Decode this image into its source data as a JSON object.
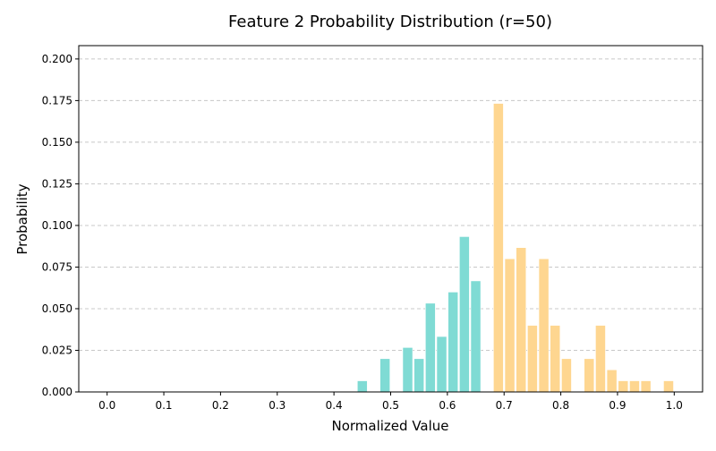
{
  "chart_data": {
    "type": "bar",
    "title": "Feature 2 Probability Distribution (r=50)",
    "xlabel": "Normalized Value",
    "ylabel": "Probability",
    "xlim": [
      -0.05,
      1.05
    ],
    "ylim": [
      0,
      0.208
    ],
    "xticks": [
      "0.0",
      "0.1",
      "0.2",
      "0.3",
      "0.4",
      "0.5",
      "0.6",
      "0.7",
      "0.8",
      "0.9",
      "1.0"
    ],
    "yticks": [
      "0.000",
      "0.025",
      "0.050",
      "0.075",
      "0.100",
      "0.125",
      "0.150",
      "0.175",
      "0.200"
    ],
    "grid": "horizontal dashed",
    "colors": {
      "teal": "#7fdbd4",
      "orange": "#fed690"
    },
    "bars": [
      {
        "x": 0.45,
        "y": 0.0067,
        "color": "teal"
      },
      {
        "x": 0.49,
        "y": 0.02,
        "color": "teal"
      },
      {
        "x": 0.53,
        "y": 0.0267,
        "color": "teal"
      },
      {
        "x": 0.55,
        "y": 0.02,
        "color": "teal"
      },
      {
        "x": 0.57,
        "y": 0.0533,
        "color": "teal"
      },
      {
        "x": 0.59,
        "y": 0.0333,
        "color": "teal"
      },
      {
        "x": 0.61,
        "y": 0.06,
        "color": "teal"
      },
      {
        "x": 0.63,
        "y": 0.0933,
        "color": "teal"
      },
      {
        "x": 0.65,
        "y": 0.0667,
        "color": "teal"
      },
      {
        "x": 0.69,
        "y": 0.1733,
        "color": "orange"
      },
      {
        "x": 0.71,
        "y": 0.08,
        "color": "orange"
      },
      {
        "x": 0.73,
        "y": 0.0867,
        "color": "orange"
      },
      {
        "x": 0.75,
        "y": 0.04,
        "color": "orange"
      },
      {
        "x": 0.77,
        "y": 0.08,
        "color": "orange"
      },
      {
        "x": 0.79,
        "y": 0.04,
        "color": "orange"
      },
      {
        "x": 0.81,
        "y": 0.02,
        "color": "orange"
      },
      {
        "x": 0.85,
        "y": 0.02,
        "color": "orange"
      },
      {
        "x": 0.87,
        "y": 0.04,
        "color": "orange"
      },
      {
        "x": 0.89,
        "y": 0.0133,
        "color": "orange"
      },
      {
        "x": 0.91,
        "y": 0.0067,
        "color": "orange"
      },
      {
        "x": 0.93,
        "y": 0.0067,
        "color": "orange"
      },
      {
        "x": 0.95,
        "y": 0.0067,
        "color": "orange"
      },
      {
        "x": 0.99,
        "y": 0.0067,
        "color": "orange"
      }
    ]
  }
}
